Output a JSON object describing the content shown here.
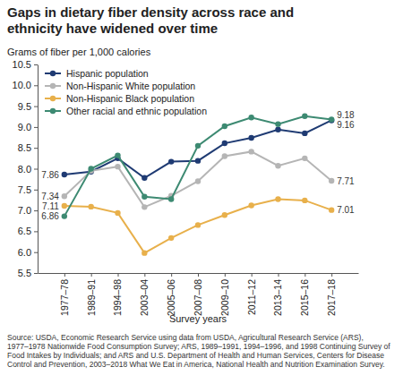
{
  "chart_data": {
    "type": "line",
    "title": "Gaps in dietary fiber density across race and ethnicity have widened over time",
    "y_label": "Grams of fiber per 1,000 calories",
    "x_label": "Survey years",
    "source": "Source: USDA, Economic Research Service using data from USDA, Agricultural Research Service (ARS), 1977–1978 Nationwide Food Consumption Survey; ARS, 1989–1991, 1994–1996, and 1998 Continuing Survey of Food Intakes by Individuals; and ARS and U.S. Department of Health and Human Services, Centers for Disease Control and Prevention, 2003–2018 What We Eat in America, National Health and Nutrition Examination Survey.",
    "categories": [
      "1977–78",
      "1989–91",
      "1994–98",
      "2003–04",
      "2005–06",
      "2007–08",
      "2009–10",
      "2011–12",
      "2013–14",
      "2015–16",
      "2017–18"
    ],
    "series": [
      {
        "name": "Hispanic population",
        "color": "#1f3b73",
        "marker": "circle",
        "values": [
          7.86,
          7.93,
          8.25,
          7.78,
          8.17,
          8.19,
          8.61,
          8.74,
          8.94,
          8.85,
          9.16
        ],
        "value_labels": [
          "7.86",
          null,
          null,
          null,
          null,
          null,
          null,
          null,
          null,
          null,
          "9.16"
        ]
      },
      {
        "name": "Non-Hispanic White population",
        "color": "#b5b5b5",
        "marker": "circle",
        "values": [
          7.34,
          7.95,
          8.05,
          7.08,
          7.35,
          7.7,
          8.3,
          8.41,
          8.07,
          8.25,
          7.71
        ],
        "value_labels": [
          "7.34",
          null,
          null,
          null,
          null,
          null,
          null,
          null,
          null,
          null,
          "7.71"
        ]
      },
      {
        "name": "Non-Hispanic Black population",
        "color": "#e8b04b",
        "marker": "circle",
        "values": [
          7.11,
          7.09,
          6.94,
          5.98,
          6.34,
          6.65,
          6.89,
          7.12,
          7.27,
          7.24,
          7.01
        ],
        "value_labels": [
          "7.11",
          null,
          null,
          null,
          null,
          null,
          null,
          null,
          null,
          null,
          "7.01"
        ]
      },
      {
        "name": "Other racial and ethnic population",
        "color": "#3d8a72",
        "marker": "circle",
        "values": [
          6.86,
          8.0,
          8.32,
          7.33,
          7.27,
          8.55,
          9.02,
          9.23,
          9.07,
          9.26,
          9.18
        ],
        "value_labels": [
          "6.86",
          null,
          null,
          null,
          null,
          null,
          null,
          null,
          null,
          null,
          "9.18"
        ]
      }
    ],
    "ylim": [
      5.5,
      10.5
    ],
    "yticks": [
      5.5,
      {
        "value": 6,
        "label": "6.0"
      },
      6.5,
      {
        "value": 7,
        "label": "7.0"
      },
      7.5,
      {
        "value": 8,
        "label": "8.0"
      },
      8.5,
      {
        "value": 9,
        "label": "9.0"
      },
      9.5,
      {
        "value": 10,
        "label": "10.0"
      },
      10.5
    ],
    "grid": false,
    "legend": "upper left",
    "data_labels": true
  }
}
